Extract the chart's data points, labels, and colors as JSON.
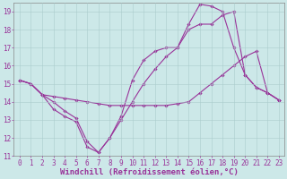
{
  "xlabel": "Windchill (Refroidissement éolien,°C)",
  "background_color": "#cce8e8",
  "line_color": "#993399",
  "xlim": [
    -0.5,
    23.5
  ],
  "ylim": [
    11,
    19.5
  ],
  "yticks": [
    11,
    12,
    13,
    14,
    15,
    16,
    17,
    18,
    19
  ],
  "xticks": [
    0,
    1,
    2,
    3,
    4,
    5,
    6,
    7,
    8,
    9,
    10,
    11,
    12,
    13,
    14,
    15,
    16,
    17,
    18,
    19,
    20,
    21,
    22,
    23
  ],
  "line1_x": [
    0,
    1,
    2,
    3,
    4,
    5,
    6,
    7,
    8,
    9,
    10,
    11,
    12,
    13,
    14,
    15,
    16,
    17,
    18,
    19,
    20,
    21,
    22,
    23
  ],
  "line1_y": [
    15.2,
    15.0,
    14.4,
    13.6,
    13.2,
    12.9,
    11.5,
    11.2,
    12.0,
    13.0,
    14.0,
    15.0,
    15.8,
    16.5,
    17.0,
    18.3,
    19.4,
    19.3,
    19.0,
    17.0,
    15.5,
    14.8,
    14.5,
    14.1
  ],
  "line2_x": [
    0,
    1,
    2,
    3,
    4,
    5,
    6,
    7,
    8,
    9,
    10,
    11,
    12,
    13,
    14,
    15,
    16,
    17,
    18,
    19,
    20,
    21,
    22,
    23
  ],
  "line2_y": [
    15.2,
    15.0,
    14.4,
    14.3,
    14.2,
    14.1,
    14.0,
    13.9,
    13.8,
    13.8,
    13.8,
    13.8,
    13.8,
    13.8,
    13.9,
    14.0,
    14.5,
    15.0,
    15.5,
    16.0,
    16.5,
    16.8,
    14.5,
    14.1
  ],
  "line3_x": [
    0,
    1,
    2,
    3,
    4,
    5,
    6,
    7,
    8,
    9,
    10,
    11,
    12,
    13,
    14,
    15,
    16,
    17,
    18,
    19,
    20,
    21,
    22,
    23
  ],
  "line3_y": [
    15.2,
    15.0,
    14.4,
    14.0,
    13.5,
    13.1,
    11.8,
    11.2,
    12.0,
    13.2,
    15.2,
    16.3,
    16.8,
    17.0,
    17.0,
    18.0,
    18.3,
    18.3,
    18.8,
    19.0,
    15.5,
    14.8,
    14.5,
    14.1
  ],
  "grid_color": "#aacccc",
  "marker": "D",
  "marker_size": 1.8,
  "linewidth": 0.8,
  "xlabel_fontsize": 6.5,
  "tick_fontsize": 5.5,
  "xlabel_color": "#993399",
  "tick_color": "#993399"
}
